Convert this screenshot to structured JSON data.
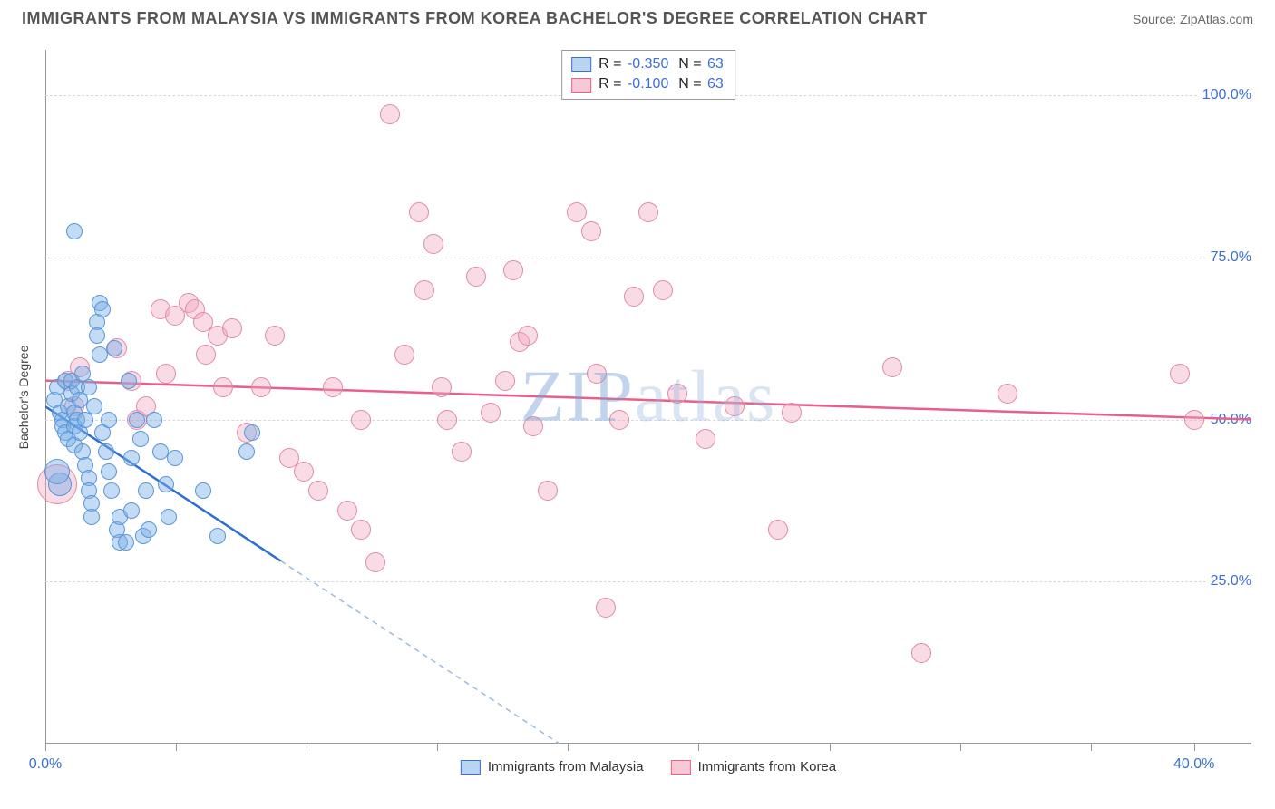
{
  "header": {
    "title": "IMMIGRANTS FROM MALAYSIA VS IMMIGRANTS FROM KOREA BACHELOR'S DEGREE CORRELATION CHART",
    "source": "Source: ZipAtlas.com"
  },
  "watermark": {
    "zip": "ZIP",
    "atlas": "atlas"
  },
  "chart": {
    "type": "scatter",
    "y_axis": {
      "label": "Bachelor's Degree",
      "min": 0,
      "max": 107,
      "ticks": [
        {
          "v": 25,
          "label": "25.0%"
        },
        {
          "v": 50,
          "label": "50.0%"
        },
        {
          "v": 75,
          "label": "75.0%"
        },
        {
          "v": 100,
          "label": "100.0%"
        }
      ],
      "label_color": "#3b6fd6",
      "grid_color": "#d9d9d9"
    },
    "x_axis": {
      "min": 0,
      "max": 42,
      "ticks_major": [
        0,
        40
      ],
      "ticks_minor": [
        4.55,
        9.1,
        13.65,
        18.2,
        22.75,
        27.3,
        31.85,
        36.4
      ],
      "labels": [
        {
          "v": 0,
          "label": "0.0%"
        },
        {
          "v": 40,
          "label": "40.0%"
        }
      ],
      "label_color": "#3b6fd6"
    },
    "correlation_legend": [
      {
        "swatch_fill": "#b9d4f0",
        "swatch_border": "#3b6fd6",
        "r": "-0.350",
        "n": "63"
      },
      {
        "swatch_fill": "#f6c9d5",
        "swatch_border": "#e85f8a",
        "r": "-0.100",
        "n": "63"
      }
    ],
    "series_legend": [
      {
        "swatch_fill": "#b9d4f0",
        "swatch_border": "#3b6fd6",
        "label": "Immigrants from Malaysia"
      },
      {
        "swatch_fill": "#f6c9d5",
        "swatch_border": "#e85f8a",
        "label": "Immigrants from Korea"
      }
    ],
    "series": {
      "malaysia": {
        "fill": "rgba(123,175,231,0.45)",
        "stroke": "#5a96d8",
        "radius_default": 9,
        "trend": {
          "color": "#2f6fd0",
          "dash_color": "#9db9de",
          "y_at_x0": 52,
          "y_at_xmax": -70,
          "solid_until_x": 8.2
        },
        "points": [
          {
            "x": 0.3,
            "y": 53
          },
          {
            "x": 0.4,
            "y": 55
          },
          {
            "x": 0.5,
            "y": 51
          },
          {
            "x": 0.6,
            "y": 50
          },
          {
            "x": 0.6,
            "y": 49
          },
          {
            "x": 0.7,
            "y": 56
          },
          {
            "x": 0.7,
            "y": 48
          },
          {
            "x": 0.8,
            "y": 52
          },
          {
            "x": 0.8,
            "y": 47
          },
          {
            "x": 0.9,
            "y": 56
          },
          {
            "x": 0.9,
            "y": 54
          },
          {
            "x": 1.0,
            "y": 51
          },
          {
            "x": 1.0,
            "y": 49
          },
          {
            "x": 1.0,
            "y": 46
          },
          {
            "x": 1.1,
            "y": 55
          },
          {
            "x": 1.1,
            "y": 50
          },
          {
            "x": 1.2,
            "y": 53
          },
          {
            "x": 1.2,
            "y": 48
          },
          {
            "x": 1.3,
            "y": 57
          },
          {
            "x": 1.3,
            "y": 45
          },
          {
            "x": 1.4,
            "y": 50
          },
          {
            "x": 1.4,
            "y": 43
          },
          {
            "x": 1.5,
            "y": 55
          },
          {
            "x": 1.5,
            "y": 41
          },
          {
            "x": 1.5,
            "y": 39
          },
          {
            "x": 1.6,
            "y": 37
          },
          {
            "x": 1.6,
            "y": 35
          },
          {
            "x": 0.5,
            "y": 40,
            "r": 13
          },
          {
            "x": 1.7,
            "y": 52
          },
          {
            "x": 1.8,
            "y": 65
          },
          {
            "x": 1.8,
            "y": 63
          },
          {
            "x": 1.9,
            "y": 60
          },
          {
            "x": 1.9,
            "y": 68
          },
          {
            "x": 2.0,
            "y": 67
          },
          {
            "x": 2.0,
            "y": 48
          },
          {
            "x": 2.1,
            "y": 45
          },
          {
            "x": 2.2,
            "y": 50
          },
          {
            "x": 2.2,
            "y": 42
          },
          {
            "x": 2.3,
            "y": 39
          },
          {
            "x": 2.4,
            "y": 61
          },
          {
            "x": 2.5,
            "y": 33
          },
          {
            "x": 2.6,
            "y": 35
          },
          {
            "x": 2.6,
            "y": 31
          },
          {
            "x": 2.8,
            "y": 31
          },
          {
            "x": 2.9,
            "y": 56
          },
          {
            "x": 3.0,
            "y": 36
          },
          {
            "x": 3.0,
            "y": 44
          },
          {
            "x": 3.2,
            "y": 50
          },
          {
            "x": 3.3,
            "y": 47
          },
          {
            "x": 3.4,
            "y": 32
          },
          {
            "x": 3.5,
            "y": 39
          },
          {
            "x": 3.6,
            "y": 33
          },
          {
            "x": 3.8,
            "y": 50
          },
          {
            "x": 4.0,
            "y": 45
          },
          {
            "x": 4.2,
            "y": 40
          },
          {
            "x": 4.3,
            "y": 35
          },
          {
            "x": 4.5,
            "y": 44
          },
          {
            "x": 5.5,
            "y": 39
          },
          {
            "x": 6.0,
            "y": 32
          },
          {
            "x": 7.0,
            "y": 45
          },
          {
            "x": 7.2,
            "y": 48
          },
          {
            "x": 1.0,
            "y": 79
          },
          {
            "x": 0.4,
            "y": 42,
            "r": 14
          }
        ]
      },
      "korea": {
        "fill": "rgba(241,165,190,0.40)",
        "stroke": "#e08aa6",
        "radius_default": 11,
        "trend": {
          "color": "#e85f8a",
          "y_at_x0": 56,
          "y_at_xmax": 50
        },
        "points": [
          {
            "x": 0.4,
            "y": 40,
            "r": 22
          },
          {
            "x": 0.8,
            "y": 56
          },
          {
            "x": 1.0,
            "y": 52
          },
          {
            "x": 1.2,
            "y": 58
          },
          {
            "x": 2.5,
            "y": 61
          },
          {
            "x": 3.0,
            "y": 56
          },
          {
            "x": 3.2,
            "y": 50
          },
          {
            "x": 3.5,
            "y": 52
          },
          {
            "x": 4.0,
            "y": 67
          },
          {
            "x": 4.2,
            "y": 57
          },
          {
            "x": 4.5,
            "y": 66
          },
          {
            "x": 5.0,
            "y": 68
          },
          {
            "x": 5.2,
            "y": 67
          },
          {
            "x": 5.5,
            "y": 65
          },
          {
            "x": 5.6,
            "y": 60
          },
          {
            "x": 6.0,
            "y": 63
          },
          {
            "x": 6.2,
            "y": 55
          },
          {
            "x": 6.5,
            "y": 64
          },
          {
            "x": 7.0,
            "y": 48
          },
          {
            "x": 7.5,
            "y": 55
          },
          {
            "x": 8.0,
            "y": 63
          },
          {
            "x": 8.5,
            "y": 44
          },
          {
            "x": 9.0,
            "y": 42
          },
          {
            "x": 9.5,
            "y": 39
          },
          {
            "x": 10.0,
            "y": 55
          },
          {
            "x": 10.5,
            "y": 36
          },
          {
            "x": 11.0,
            "y": 33
          },
          {
            "x": 11.5,
            "y": 28
          },
          {
            "x": 12.0,
            "y": 97
          },
          {
            "x": 12.5,
            "y": 60
          },
          {
            "x": 13.0,
            "y": 82
          },
          {
            "x": 13.2,
            "y": 70
          },
          {
            "x": 13.5,
            "y": 77
          },
          {
            "x": 13.8,
            "y": 55
          },
          {
            "x": 14.0,
            "y": 50
          },
          {
            "x": 14.5,
            "y": 45
          },
          {
            "x": 15.0,
            "y": 72
          },
          {
            "x": 15.5,
            "y": 51
          },
          {
            "x": 16.0,
            "y": 56
          },
          {
            "x": 16.3,
            "y": 73
          },
          {
            "x": 16.5,
            "y": 62
          },
          {
            "x": 16.8,
            "y": 63
          },
          {
            "x": 17.0,
            "y": 49
          },
          {
            "x": 17.5,
            "y": 39
          },
          {
            "x": 18.5,
            "y": 82
          },
          {
            "x": 19.0,
            "y": 79
          },
          {
            "x": 19.2,
            "y": 57
          },
          {
            "x": 19.5,
            "y": 21
          },
          {
            "x": 20.0,
            "y": 50
          },
          {
            "x": 20.5,
            "y": 69
          },
          {
            "x": 21.0,
            "y": 82
          },
          {
            "x": 21.5,
            "y": 70
          },
          {
            "x": 22.0,
            "y": 54
          },
          {
            "x": 23.0,
            "y": 47
          },
          {
            "x": 24.0,
            "y": 52
          },
          {
            "x": 25.5,
            "y": 33
          },
          {
            "x": 26.0,
            "y": 51
          },
          {
            "x": 29.5,
            "y": 58
          },
          {
            "x": 30.5,
            "y": 14
          },
          {
            "x": 33.5,
            "y": 54
          },
          {
            "x": 39.5,
            "y": 57
          },
          {
            "x": 40.0,
            "y": 50
          },
          {
            "x": 11.0,
            "y": 50
          }
        ]
      }
    }
  }
}
